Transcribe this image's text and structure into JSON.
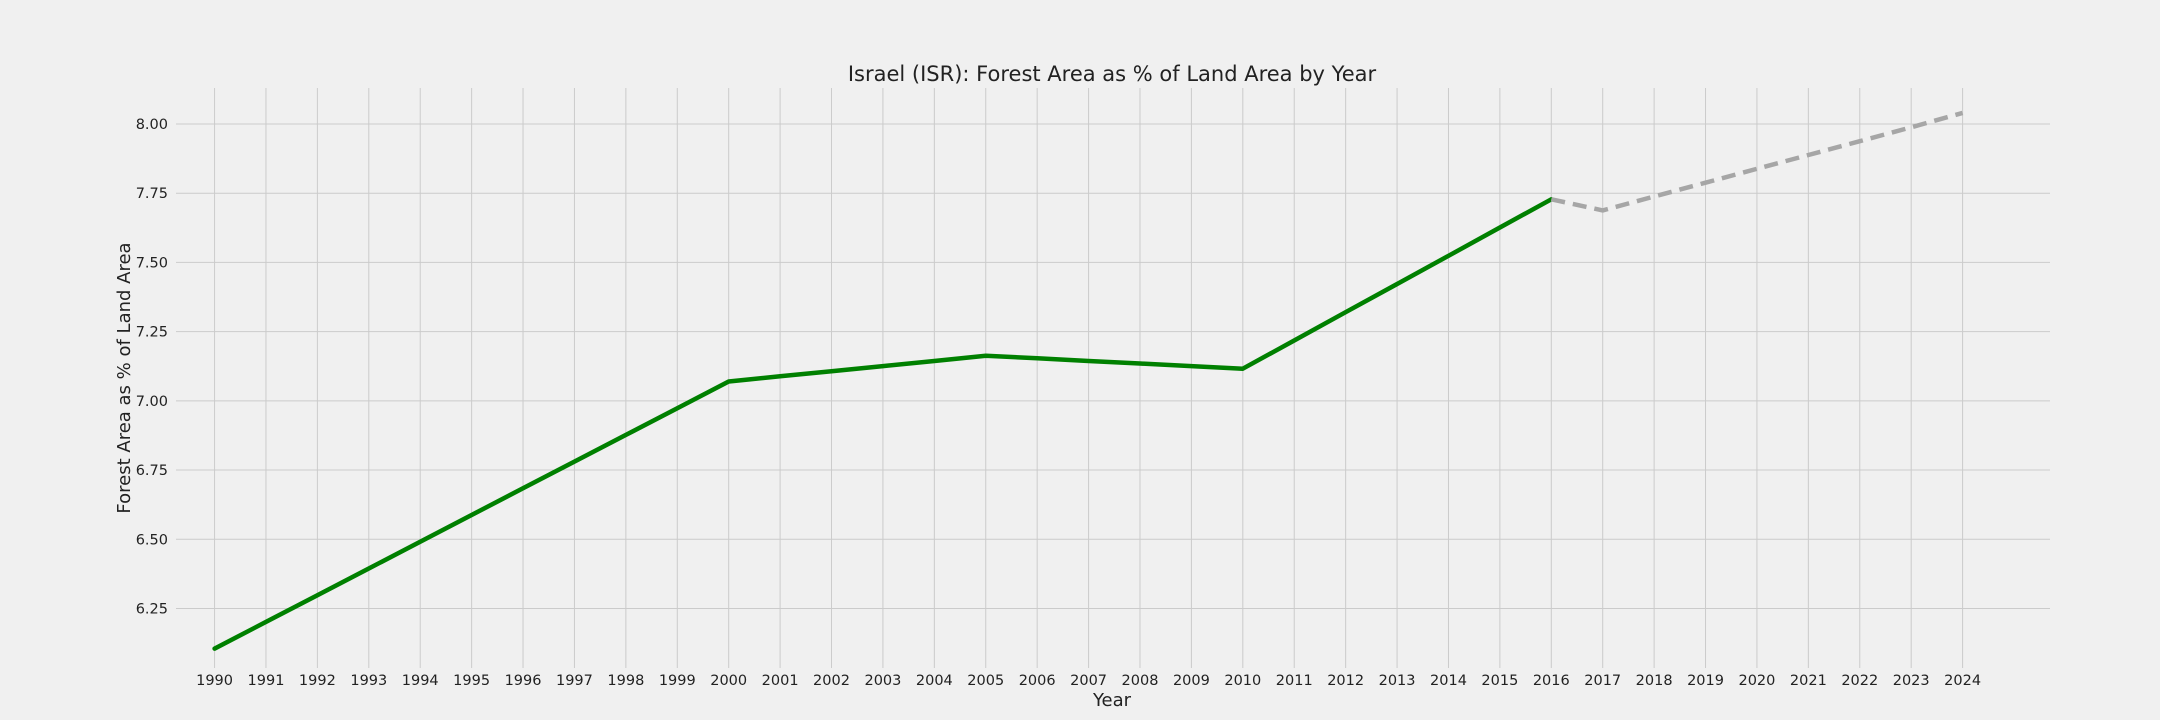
{
  "chart_data": {
    "type": "line",
    "title": "Israel (ISR): Forest Area as % of Land Area by Year",
    "xlabel": "Year",
    "ylabel": "Forest Area as % of Land Area",
    "xlim": [
      1989.25,
      2025.7
    ],
    "ylim": [
      6.035,
      8.13
    ],
    "yticks": [
      6.25,
      6.5,
      6.75,
      7.0,
      7.25,
      7.5,
      7.75,
      8.0
    ],
    "ytick_labels": [
      "6.25",
      "6.50",
      "6.75",
      "7.00",
      "7.25",
      "7.50",
      "7.75",
      "8.00"
    ],
    "xticks": [
      1990,
      1991,
      1992,
      1993,
      1994,
      1995,
      1996,
      1997,
      1998,
      1999,
      2000,
      2001,
      2002,
      2003,
      2004,
      2005,
      2006,
      2007,
      2008,
      2009,
      2010,
      2011,
      2012,
      2013,
      2014,
      2015,
      2016,
      2017,
      2018,
      2019,
      2020,
      2021,
      2022,
      2023,
      2024
    ],
    "grid": true,
    "series": [
      {
        "style": "solid",
        "color": "#008000",
        "x": [
          1990,
          1991,
          1992,
          1993,
          1994,
          1995,
          1996,
          1997,
          1998,
          1999,
          2000,
          2001,
          2002,
          2003,
          2004,
          2005,
          2006,
          2007,
          2008,
          2009,
          2010,
          2011,
          2012,
          2013,
          2014,
          2015,
          2016
        ],
        "values": [
          6.105,
          6.2015,
          6.298,
          6.3945,
          6.491,
          6.5875,
          6.684,
          6.7805,
          6.877,
          6.9735,
          7.07,
          7.0885,
          7.107,
          7.1255,
          7.144,
          7.163,
          7.1535,
          7.144,
          7.135,
          7.1255,
          7.116,
          7.218,
          7.32,
          7.422,
          7.524,
          7.626,
          7.728
        ]
      },
      {
        "style": "dashed",
        "color": "#a6a6a6",
        "x": [
          2016,
          2017,
          2018,
          2019,
          2020,
          2021,
          2022,
          2023,
          2024
        ],
        "values": [
          7.728,
          7.688,
          7.738,
          7.788,
          7.838,
          7.888,
          7.938,
          7.988,
          8.04
        ]
      }
    ]
  }
}
